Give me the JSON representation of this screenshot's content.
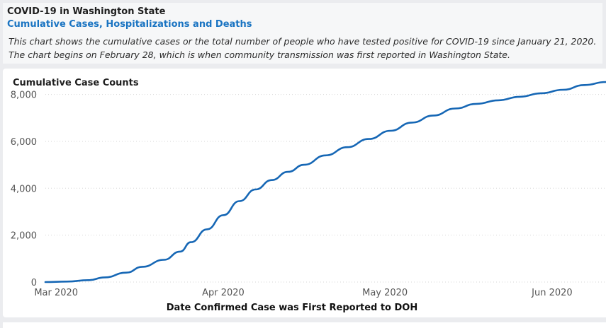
{
  "header": {
    "title": "COVID-19 in Washington State",
    "subtitle": "Cumulative Cases, Hospitalizations and Deaths",
    "description_line1": "This chart shows the cumulative cases or the total number of people who have tested positive for COVID-19 since January 21, 2020.",
    "description_line2": "The chart begins on February 28, which is when community transmission was first reported in Washington State."
  },
  "colors": {
    "line": "#1667b5",
    "subtitle": "#1a74c2",
    "grid": "#d6d6d6"
  },
  "chart_data": {
    "type": "line",
    "title": "Cumulative Case Counts",
    "xlabel": "Date Confirmed Case was First Reported to DOH",
    "ylabel": "",
    "ylim": [
      0,
      8500
    ],
    "x_ticks": [
      "Mar 2020",
      "Apr 2020",
      "May 2020",
      "Jun 2020"
    ],
    "y_ticks": [
      "0",
      "2,000",
      "4,000",
      "6,000",
      "8,000"
    ],
    "y_tick_values": [
      0,
      2000,
      4000,
      6000,
      8000
    ],
    "grid": true,
    "series": [
      {
        "x": [
          "2020-02-28",
          "2020-03-03",
          "2020-03-07",
          "2020-03-10",
          "2020-03-14",
          "2020-03-17",
          "2020-03-21",
          "2020-03-24",
          "2020-03-26",
          "2020-03-29",
          "2020-04-01",
          "2020-04-04",
          "2020-04-07",
          "2020-04-10",
          "2020-04-13",
          "2020-04-16",
          "2020-04-20",
          "2020-04-24",
          "2020-04-28",
          "2020-05-02",
          "2020-05-06",
          "2020-05-10",
          "2020-05-14",
          "2020-05-18",
          "2020-05-22",
          "2020-05-26",
          "2020-05-30",
          "2020-06-03",
          "2020-06-07",
          "2020-06-11"
        ],
        "y": [
          0,
          20,
          80,
          200,
          400,
          650,
          950,
          1300,
          1700,
          2250,
          2850,
          3450,
          3950,
          4350,
          4700,
          5000,
          5400,
          5750,
          6100,
          6450,
          6800,
          7100,
          7400,
          7600,
          7750,
          7900,
          8050,
          8200,
          8400,
          8530
        ]
      }
    ]
  }
}
